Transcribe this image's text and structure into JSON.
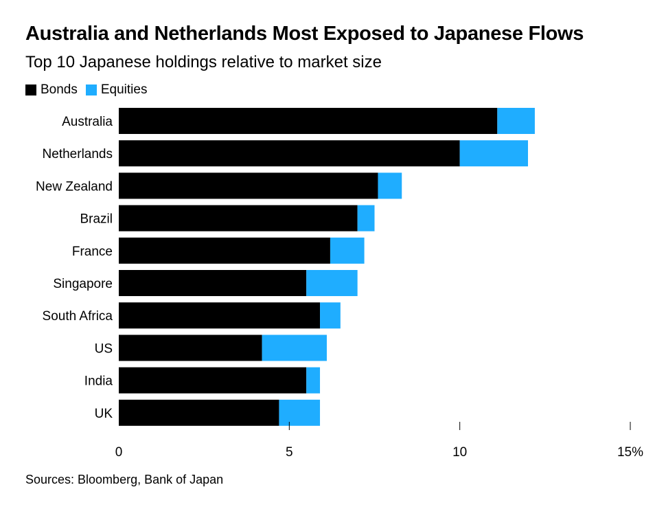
{
  "chart_data": {
    "type": "bar",
    "orientation": "horizontal",
    "stacked": true,
    "title": "Australia and Netherlands Most Exposed to Japanese Flows",
    "subtitle": "Top 10 Japanese holdings relative to market size",
    "categories": [
      "Australia",
      "Netherlands",
      "New Zealand",
      "Brazil",
      "France",
      "Singapore",
      "South Africa",
      "US",
      "India",
      "UK"
    ],
    "series": [
      {
        "name": "Bonds",
        "color": "#000000",
        "values": [
          11.1,
          10.0,
          7.6,
          7.0,
          6.2,
          5.5,
          5.9,
          4.2,
          5.5,
          4.7
        ]
      },
      {
        "name": "Equities",
        "color": "#1fadff",
        "values": [
          1.1,
          2.0,
          0.7,
          0.5,
          1.0,
          1.5,
          0.6,
          1.9,
          0.4,
          1.2
        ]
      }
    ],
    "xlim": [
      0,
      15
    ],
    "xticks": [
      "0",
      "5",
      "10",
      "15%"
    ],
    "xtick_values": [
      0,
      5,
      10,
      15
    ],
    "xlabel": "",
    "ylabel": "",
    "grid": false,
    "legend": "top-left",
    "source": "Sources: Bloomberg, Bank of Japan"
  }
}
